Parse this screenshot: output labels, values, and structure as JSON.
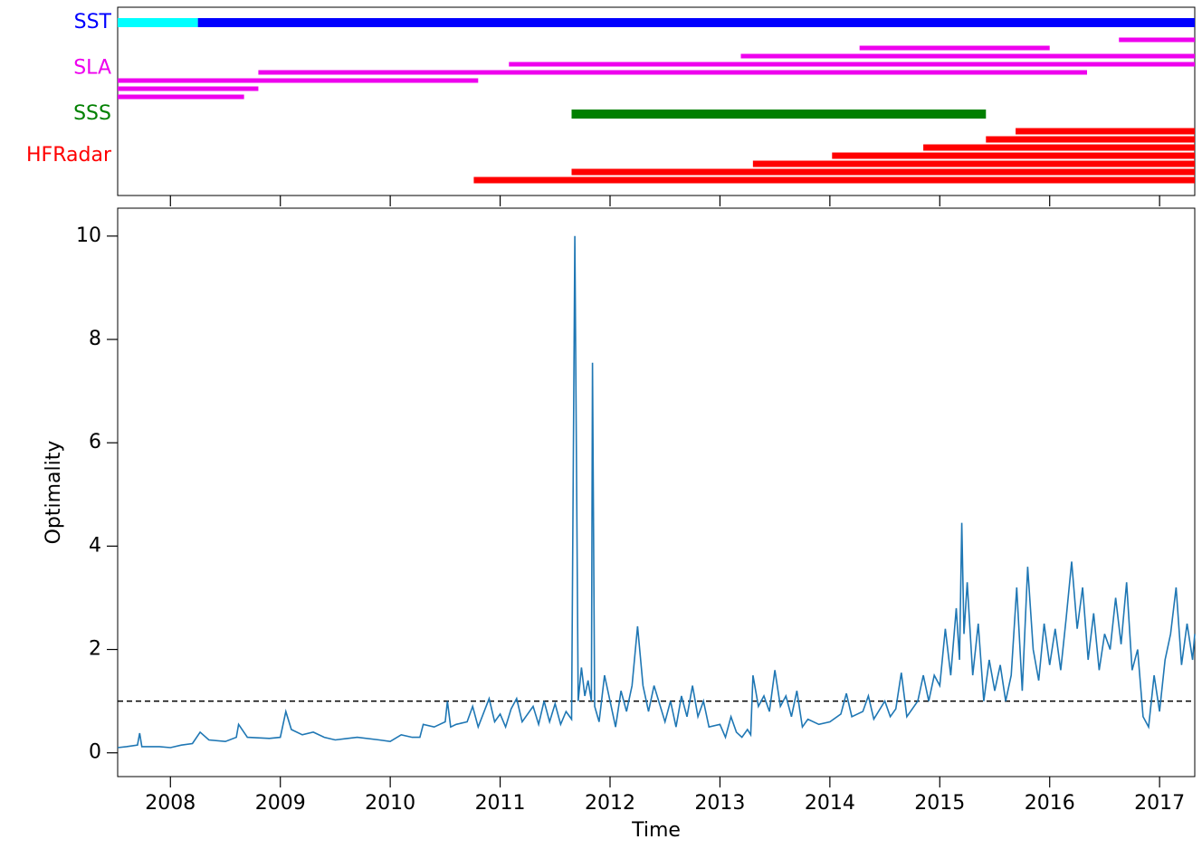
{
  "chart_data": [
    {
      "type": "timeline",
      "xlim": [
        2007.52,
        2017.32
      ],
      "xticks": [
        2008,
        2009,
        2010,
        2011,
        2012,
        2013,
        2014,
        2015,
        2016,
        2017
      ],
      "groups": [
        {
          "label": "SST",
          "color": "#0000ff",
          "rows": [
            [
              {
                "start": 2007.52,
                "end": 2008.25,
                "color": "#00ffff"
              },
              {
                "start": 2008.25,
                "end": 2017.32
              }
            ]
          ]
        },
        {
          "label": "SLA",
          "color": "#ee00ee",
          "rows": [
            [
              {
                "start": 2016.63,
                "end": 2017.32
              }
            ],
            [
              {
                "start": 2014.27,
                "end": 2016.0
              }
            ],
            [
              {
                "start": 2013.19,
                "end": 2017.32
              }
            ],
            [
              {
                "start": 2011.08,
                "end": 2017.32
              }
            ],
            [
              {
                "start": 2008.8,
                "end": 2016.34
              }
            ],
            [
              {
                "start": 2007.52,
                "end": 2010.8
              }
            ],
            [
              {
                "start": 2007.52,
                "end": 2008.8
              }
            ],
            [
              {
                "start": 2007.52,
                "end": 2008.67
              }
            ]
          ]
        },
        {
          "label": "SSS",
          "color": "#008000",
          "rows": [
            [
              {
                "start": 2011.65,
                "end": 2015.42
              }
            ]
          ]
        },
        {
          "label": "HFRadar",
          "color": "#ff0000",
          "rows": [
            [
              {
                "start": 2015.69,
                "end": 2017.32
              }
            ],
            [
              {
                "start": 2015.42,
                "end": 2017.32
              }
            ],
            [
              {
                "start": 2014.85,
                "end": 2017.32
              }
            ],
            [
              {
                "start": 2014.02,
                "end": 2017.32
              }
            ],
            [
              {
                "start": 2013.3,
                "end": 2017.32
              }
            ],
            [
              {
                "start": 2011.65,
                "end": 2017.32
              }
            ],
            [
              {
                "start": 2010.76,
                "end": 2017.32
              }
            ]
          ]
        }
      ]
    },
    {
      "type": "line",
      "xlabel": "Time",
      "ylabel": "Optimality",
      "xlim": [
        2007.52,
        2017.32
      ],
      "ylim": [
        -0.46,
        10.54
      ],
      "xticks": [
        2008,
        2009,
        2010,
        2011,
        2012,
        2013,
        2014,
        2015,
        2016,
        2017
      ],
      "yticks": [
        0,
        2,
        4,
        6,
        8,
        10
      ],
      "hline": 1,
      "x": [
        2007.52,
        2007.6,
        2007.7,
        2007.72,
        2007.74,
        2007.9,
        2008.0,
        2008.1,
        2008.2,
        2008.27,
        2008.35,
        2008.5,
        2008.6,
        2008.62,
        2008.7,
        2008.9,
        2009.0,
        2009.05,
        2009.1,
        2009.2,
        2009.3,
        2009.4,
        2009.5,
        2009.7,
        2009.9,
        2010.0,
        2010.1,
        2010.2,
        2010.27,
        2010.3,
        2010.4,
        2010.5,
        2010.52,
        2010.55,
        2010.6,
        2010.7,
        2010.75,
        2010.8,
        2010.9,
        2010.95,
        2011.0,
        2011.05,
        2011.1,
        2011.15,
        2011.2,
        2011.3,
        2011.35,
        2011.4,
        2011.45,
        2011.5,
        2011.55,
        2011.6,
        2011.65,
        2011.68,
        2011.71,
        2011.74,
        2011.77,
        2011.8,
        2011.83,
        2011.84,
        2011.86,
        2011.9,
        2011.95,
        2012.0,
        2012.05,
        2012.1,
        2012.15,
        2012.2,
        2012.25,
        2012.3,
        2012.35,
        2012.4,
        2012.5,
        2012.55,
        2012.6,
        2012.65,
        2012.7,
        2012.75,
        2012.8,
        2012.85,
        2012.9,
        2013.0,
        2013.05,
        2013.1,
        2013.15,
        2013.2,
        2013.25,
        2013.28,
        2013.3,
        2013.35,
        2013.4,
        2013.45,
        2013.5,
        2013.55,
        2013.6,
        2013.65,
        2013.7,
        2013.75,
        2013.8,
        2013.9,
        2014.0,
        2014.1,
        2014.15,
        2014.2,
        2014.3,
        2014.35,
        2014.4,
        2014.5,
        2014.55,
        2014.6,
        2014.65,
        2014.7,
        2014.8,
        2014.85,
        2014.9,
        2014.95,
        2015.0,
        2015.05,
        2015.1,
        2015.15,
        2015.18,
        2015.2,
        2015.22,
        2015.25,
        2015.3,
        2015.35,
        2015.4,
        2015.45,
        2015.5,
        2015.55,
        2015.6,
        2015.65,
        2015.7,
        2015.75,
        2015.8,
        2015.85,
        2015.9,
        2015.95,
        2016.0,
        2016.05,
        2016.1,
        2016.15,
        2016.2,
        2016.25,
        2016.3,
        2016.35,
        2016.4,
        2016.45,
        2016.5,
        2016.55,
        2016.6,
        2016.65,
        2016.7,
        2016.75,
        2016.8,
        2016.85,
        2016.9,
        2016.95,
        2017.0,
        2017.05,
        2017.1,
        2017.15,
        2017.2,
        2017.25,
        2017.3,
        2017.32
      ],
      "series": [
        {
          "color": "#1f77b4",
          "values": [
            0.1,
            0.12,
            0.15,
            0.38,
            0.12,
            0.12,
            0.1,
            0.15,
            0.18,
            0.4,
            0.25,
            0.22,
            0.3,
            0.55,
            0.3,
            0.28,
            0.3,
            0.8,
            0.45,
            0.35,
            0.4,
            0.3,
            0.25,
            0.3,
            0.25,
            0.22,
            0.35,
            0.3,
            0.3,
            0.55,
            0.5,
            0.6,
            1.0,
            0.5,
            0.55,
            0.6,
            0.9,
            0.5,
            1.05,
            0.6,
            0.75,
            0.5,
            0.85,
            1.05,
            0.6,
            0.9,
            0.55,
            1.0,
            0.6,
            0.95,
            0.55,
            0.8,
            0.65,
            10.0,
            1.0,
            1.65,
            1.1,
            1.4,
            1.0,
            7.55,
            0.9,
            0.6,
            1.5,
            1.0,
            0.5,
            1.2,
            0.8,
            1.3,
            2.45,
            1.3,
            0.8,
            1.3,
            0.6,
            1.0,
            0.5,
            1.1,
            0.7,
            1.3,
            0.7,
            1.0,
            0.5,
            0.55,
            0.3,
            0.7,
            0.4,
            0.3,
            0.45,
            0.35,
            1.5,
            0.9,
            1.1,
            0.8,
            1.6,
            0.9,
            1.1,
            0.7,
            1.2,
            0.5,
            0.65,
            0.55,
            0.6,
            0.75,
            1.15,
            0.7,
            0.8,
            1.1,
            0.65,
            1.0,
            0.7,
            0.85,
            1.55,
            0.7,
            1.0,
            1.5,
            1.0,
            1.5,
            1.3,
            2.4,
            1.5,
            2.8,
            1.8,
            4.45,
            2.3,
            3.3,
            1.5,
            2.5,
            1.0,
            1.8,
            1.2,
            1.7,
            1.0,
            1.5,
            3.2,
            1.2,
            3.6,
            2.0,
            1.4,
            2.5,
            1.7,
            2.4,
            1.6,
            2.6,
            3.7,
            2.4,
            3.2,
            1.8,
            2.7,
            1.6,
            2.3,
            2.0,
            3.0,
            2.1,
            3.3,
            1.6,
            2.0,
            0.7,
            0.5,
            1.5,
            0.8,
            1.8,
            2.3,
            3.2,
            1.7,
            2.5,
            1.8,
            2.3
          ]
        }
      ]
    }
  ]
}
